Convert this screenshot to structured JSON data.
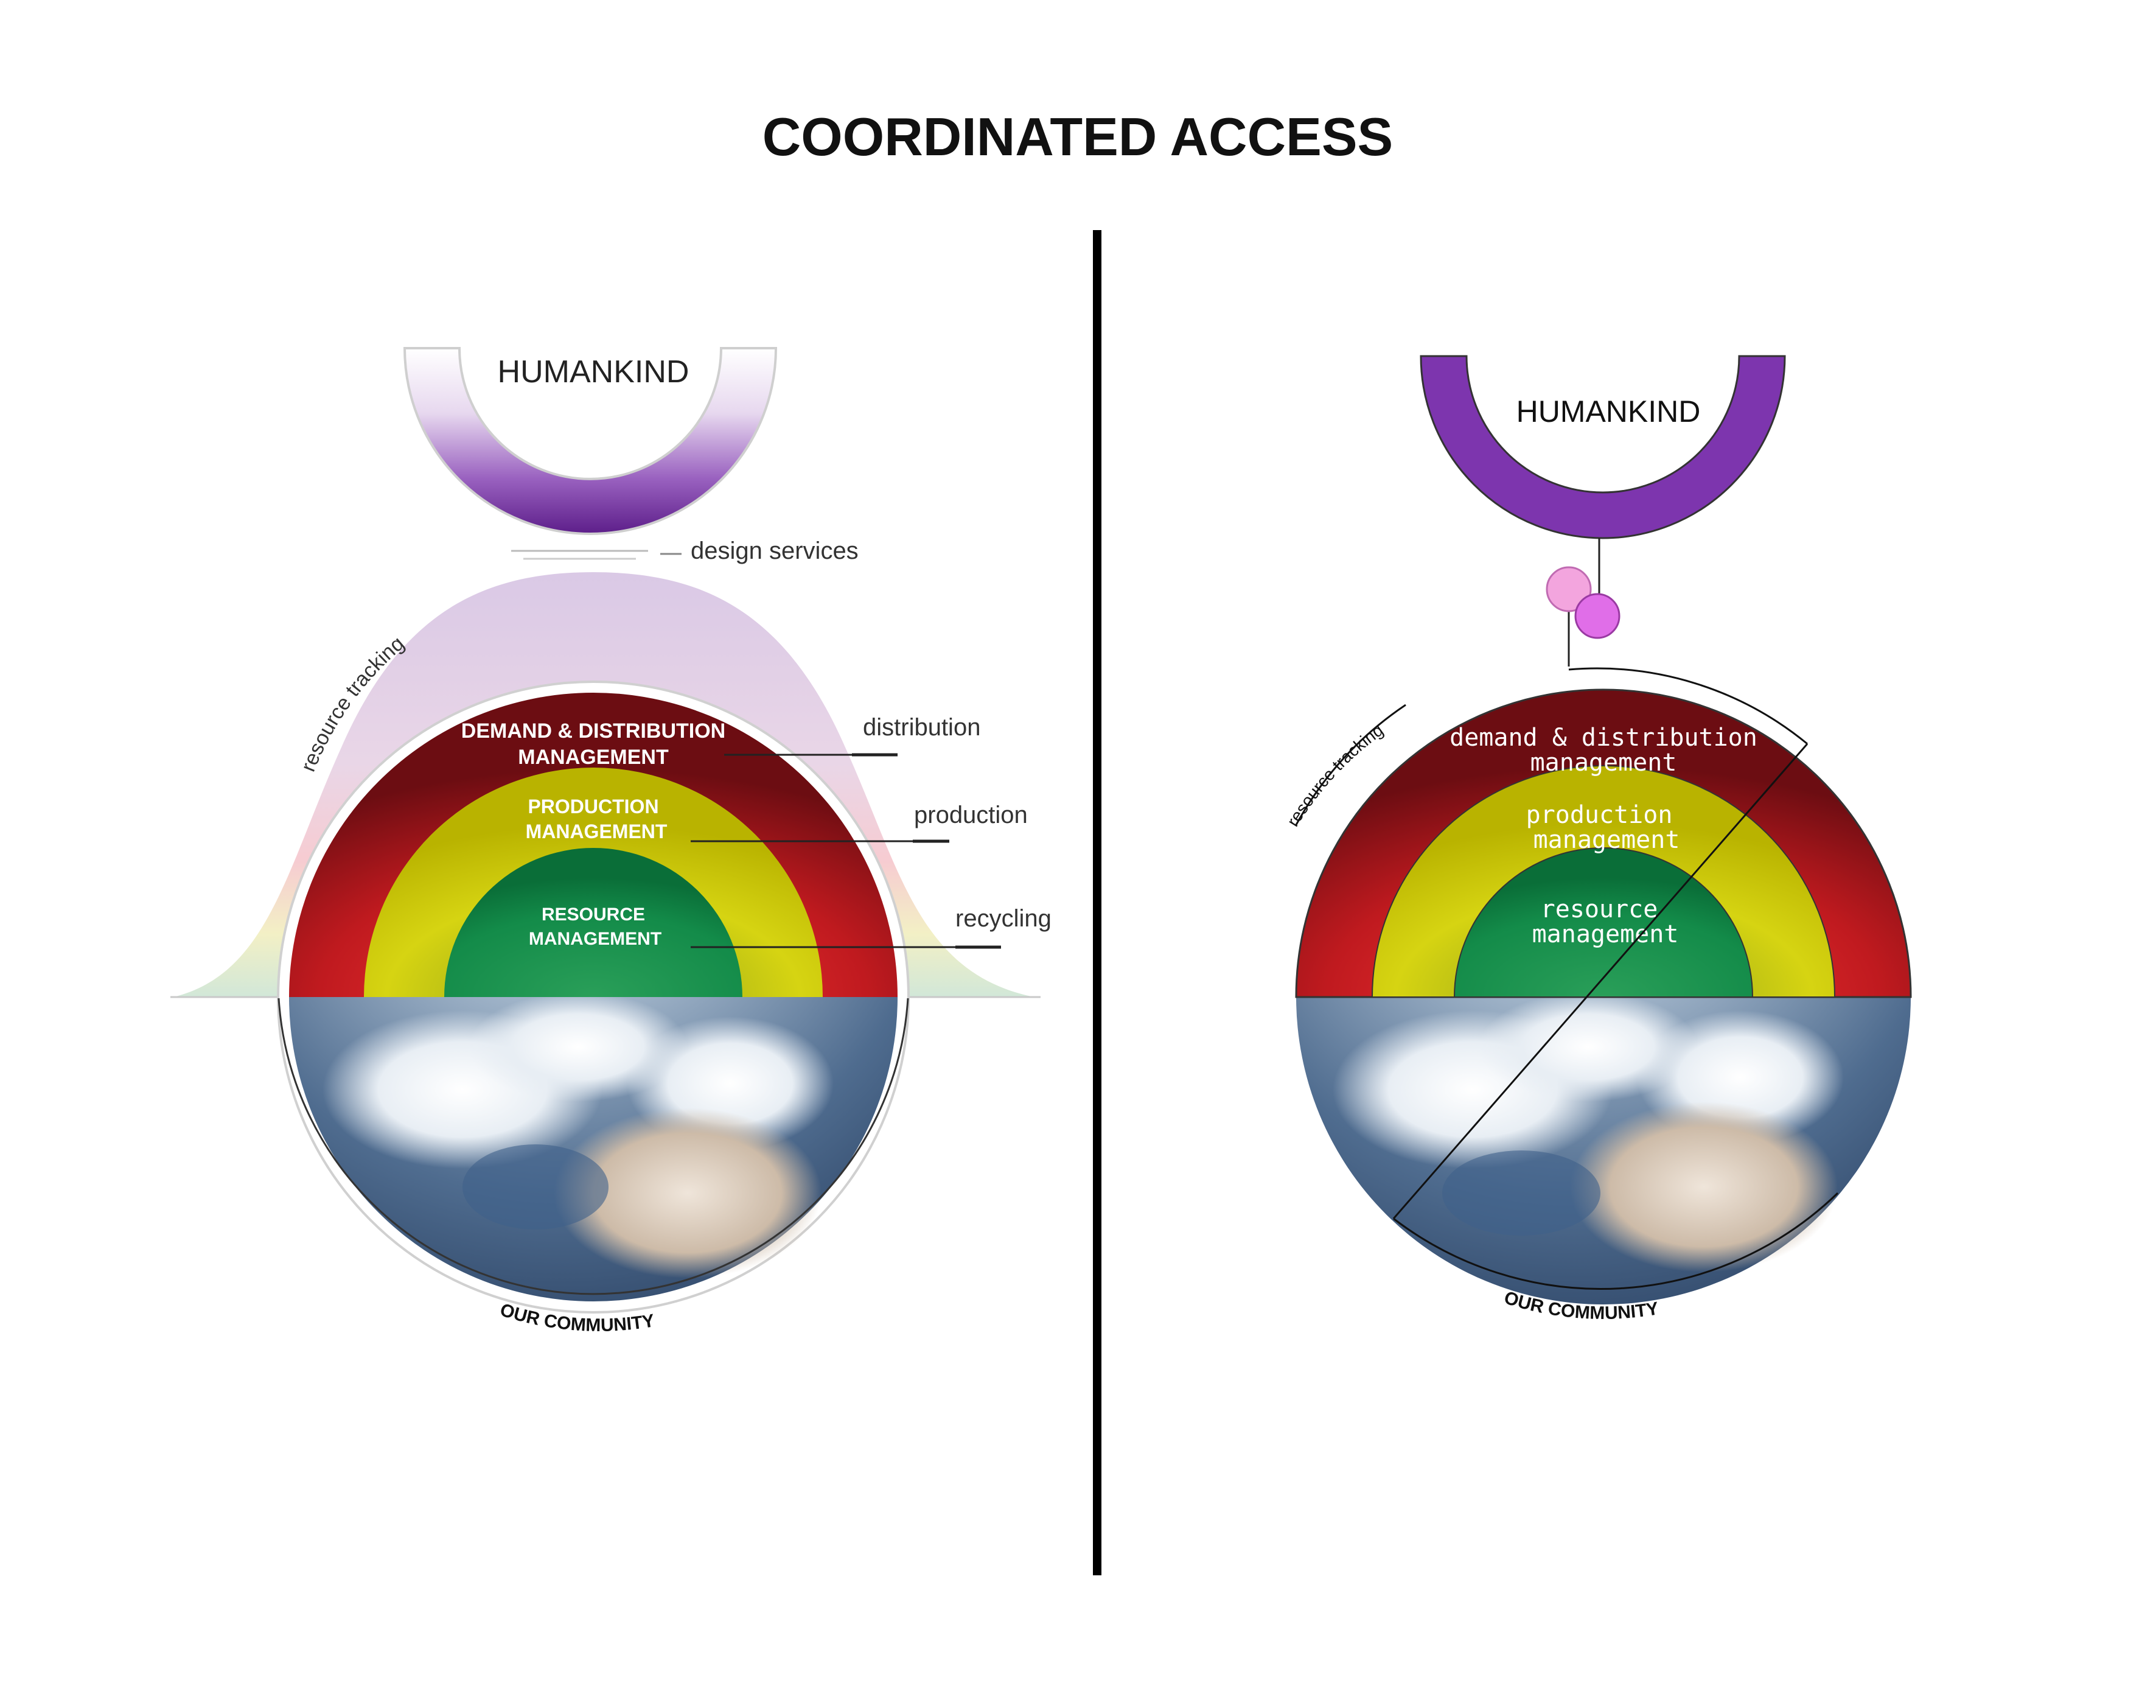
{
  "title": "COORDINATED ACCESS",
  "left": {
    "humankind": "HUMANKIND",
    "design_services": "design services",
    "resource_tracking": "resource tracking",
    "distribution": "distribution",
    "production": "production",
    "recycling": "recycling",
    "ring_demand_line1": "DEMAND & DISTRIBUTION",
    "ring_demand_line2": "MANAGEMENT",
    "ring_production_line1": "PRODUCTION",
    "ring_production_line2": "MANAGEMENT",
    "ring_resource_line1": "RESOURCE",
    "ring_resource_line2": "MANAGEMENT",
    "community": "OUR COMMUNITY"
  },
  "right": {
    "humankind": "HUMANKIND",
    "resource_tracking": "resource tracking",
    "ring_demand_line1": "demand & distribution",
    "ring_demand_line2": "management",
    "ring_production_line1": "production",
    "ring_production_line2": "management",
    "ring_resource_line1": "resource",
    "ring_resource_line2": "management",
    "community": "OUR COMMUNITY"
  },
  "colors": {
    "purple": "#7b2fa8",
    "red": "#a8141c",
    "yellow": "#c9c500",
    "green": "#0e8a45",
    "earth": "#5a7596",
    "pink": "#f2a6e0",
    "magenta": "#e070e6"
  }
}
